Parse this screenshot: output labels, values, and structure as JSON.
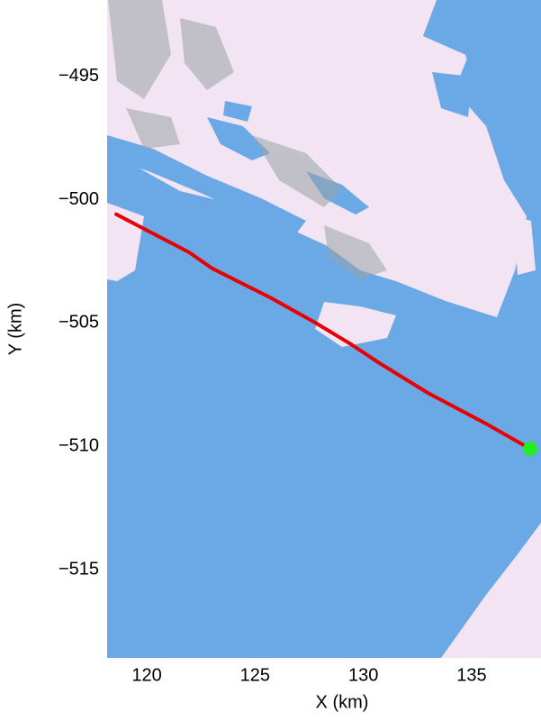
{
  "chart_data": {
    "type": "line",
    "xlabel": "X (km)",
    "ylabel": "Y (km)",
    "xlim": [
      118.17,
      138.2
    ],
    "ylim": [
      -518.58,
      -491.9
    ],
    "xticks": [
      120,
      125,
      130,
      135
    ],
    "yticks": [
      {
        "value": -495,
        "label": "−495"
      },
      {
        "value": -500,
        "label": "−500"
      },
      {
        "value": -505,
        "label": "−505"
      },
      {
        "value": -510,
        "label": "−510"
      },
      {
        "value": -515,
        "label": "−515"
      }
    ],
    "grid": false,
    "series": [
      {
        "color": "#e80000",
        "x": [
          118.59,
          121.95,
          123.03,
          125.69,
          127.77,
          129.43,
          130.68,
          132.97,
          135.66,
          137.7
        ],
        "y": [
          -500.59,
          -502.13,
          -502.79,
          -503.96,
          -504.98,
          -505.86,
          -506.59,
          -507.83,
          -509.08,
          -510.1
        ]
      }
    ],
    "points": [
      {
        "x": 137.7,
        "y": -510.1,
        "color": "#22ee22"
      }
    ]
  }
}
